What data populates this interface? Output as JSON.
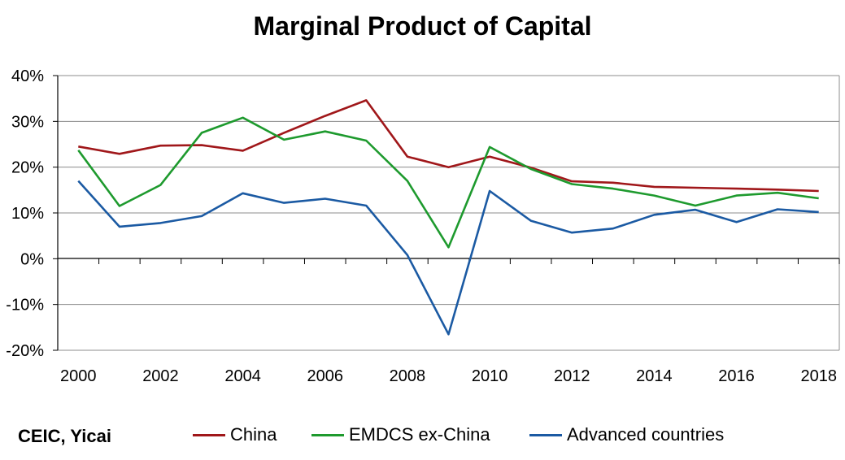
{
  "chart_data": {
    "type": "line",
    "title": "Marginal Product of Capital",
    "x": [
      2000,
      2001,
      2002,
      2003,
      2004,
      2005,
      2006,
      2007,
      2008,
      2009,
      2010,
      2011,
      2012,
      2013,
      2014,
      2015,
      2016,
      2017,
      2018
    ],
    "x_tick_labels": [
      "2000",
      "2002",
      "2004",
      "2006",
      "2008",
      "2010",
      "2012",
      "2014",
      "2016",
      "2018"
    ],
    "y_tick_labels": [
      "40%",
      "30%",
      "20%",
      "10%",
      "0%",
      "-10%",
      "-20%"
    ],
    "ylim": [
      -20,
      40
    ],
    "y_unit": "%",
    "grid": true,
    "legend_position": "bottom",
    "series": [
      {
        "name": "China",
        "color": "#a0171a",
        "values": [
          24.5,
          22.9,
          24.7,
          24.8,
          23.6,
          27.5,
          31.2,
          34.6,
          22.3,
          20.0,
          22.3,
          19.9,
          16.9,
          16.6,
          15.7,
          15.5,
          15.3,
          15.1,
          14.8
        ]
      },
      {
        "name": "EMDCS ex-China",
        "color": "#1e9a2e",
        "values": [
          23.7,
          11.5,
          16.1,
          27.5,
          30.8,
          26.0,
          27.8,
          25.8,
          17.0,
          2.5,
          24.4,
          19.6,
          16.3,
          15.3,
          13.8,
          11.6,
          13.8,
          14.4,
          13.2
        ]
      },
      {
        "name": "Advanced countries",
        "color": "#1b5aa3",
        "values": [
          17.0,
          7.0,
          7.8,
          9.3,
          14.3,
          12.2,
          13.1,
          11.6,
          0.8,
          -16.5,
          14.8,
          8.3,
          5.7,
          6.6,
          9.6,
          10.7,
          8.0,
          10.8,
          10.2
        ]
      }
    ]
  },
  "source_text": "CEIC, Yicai"
}
